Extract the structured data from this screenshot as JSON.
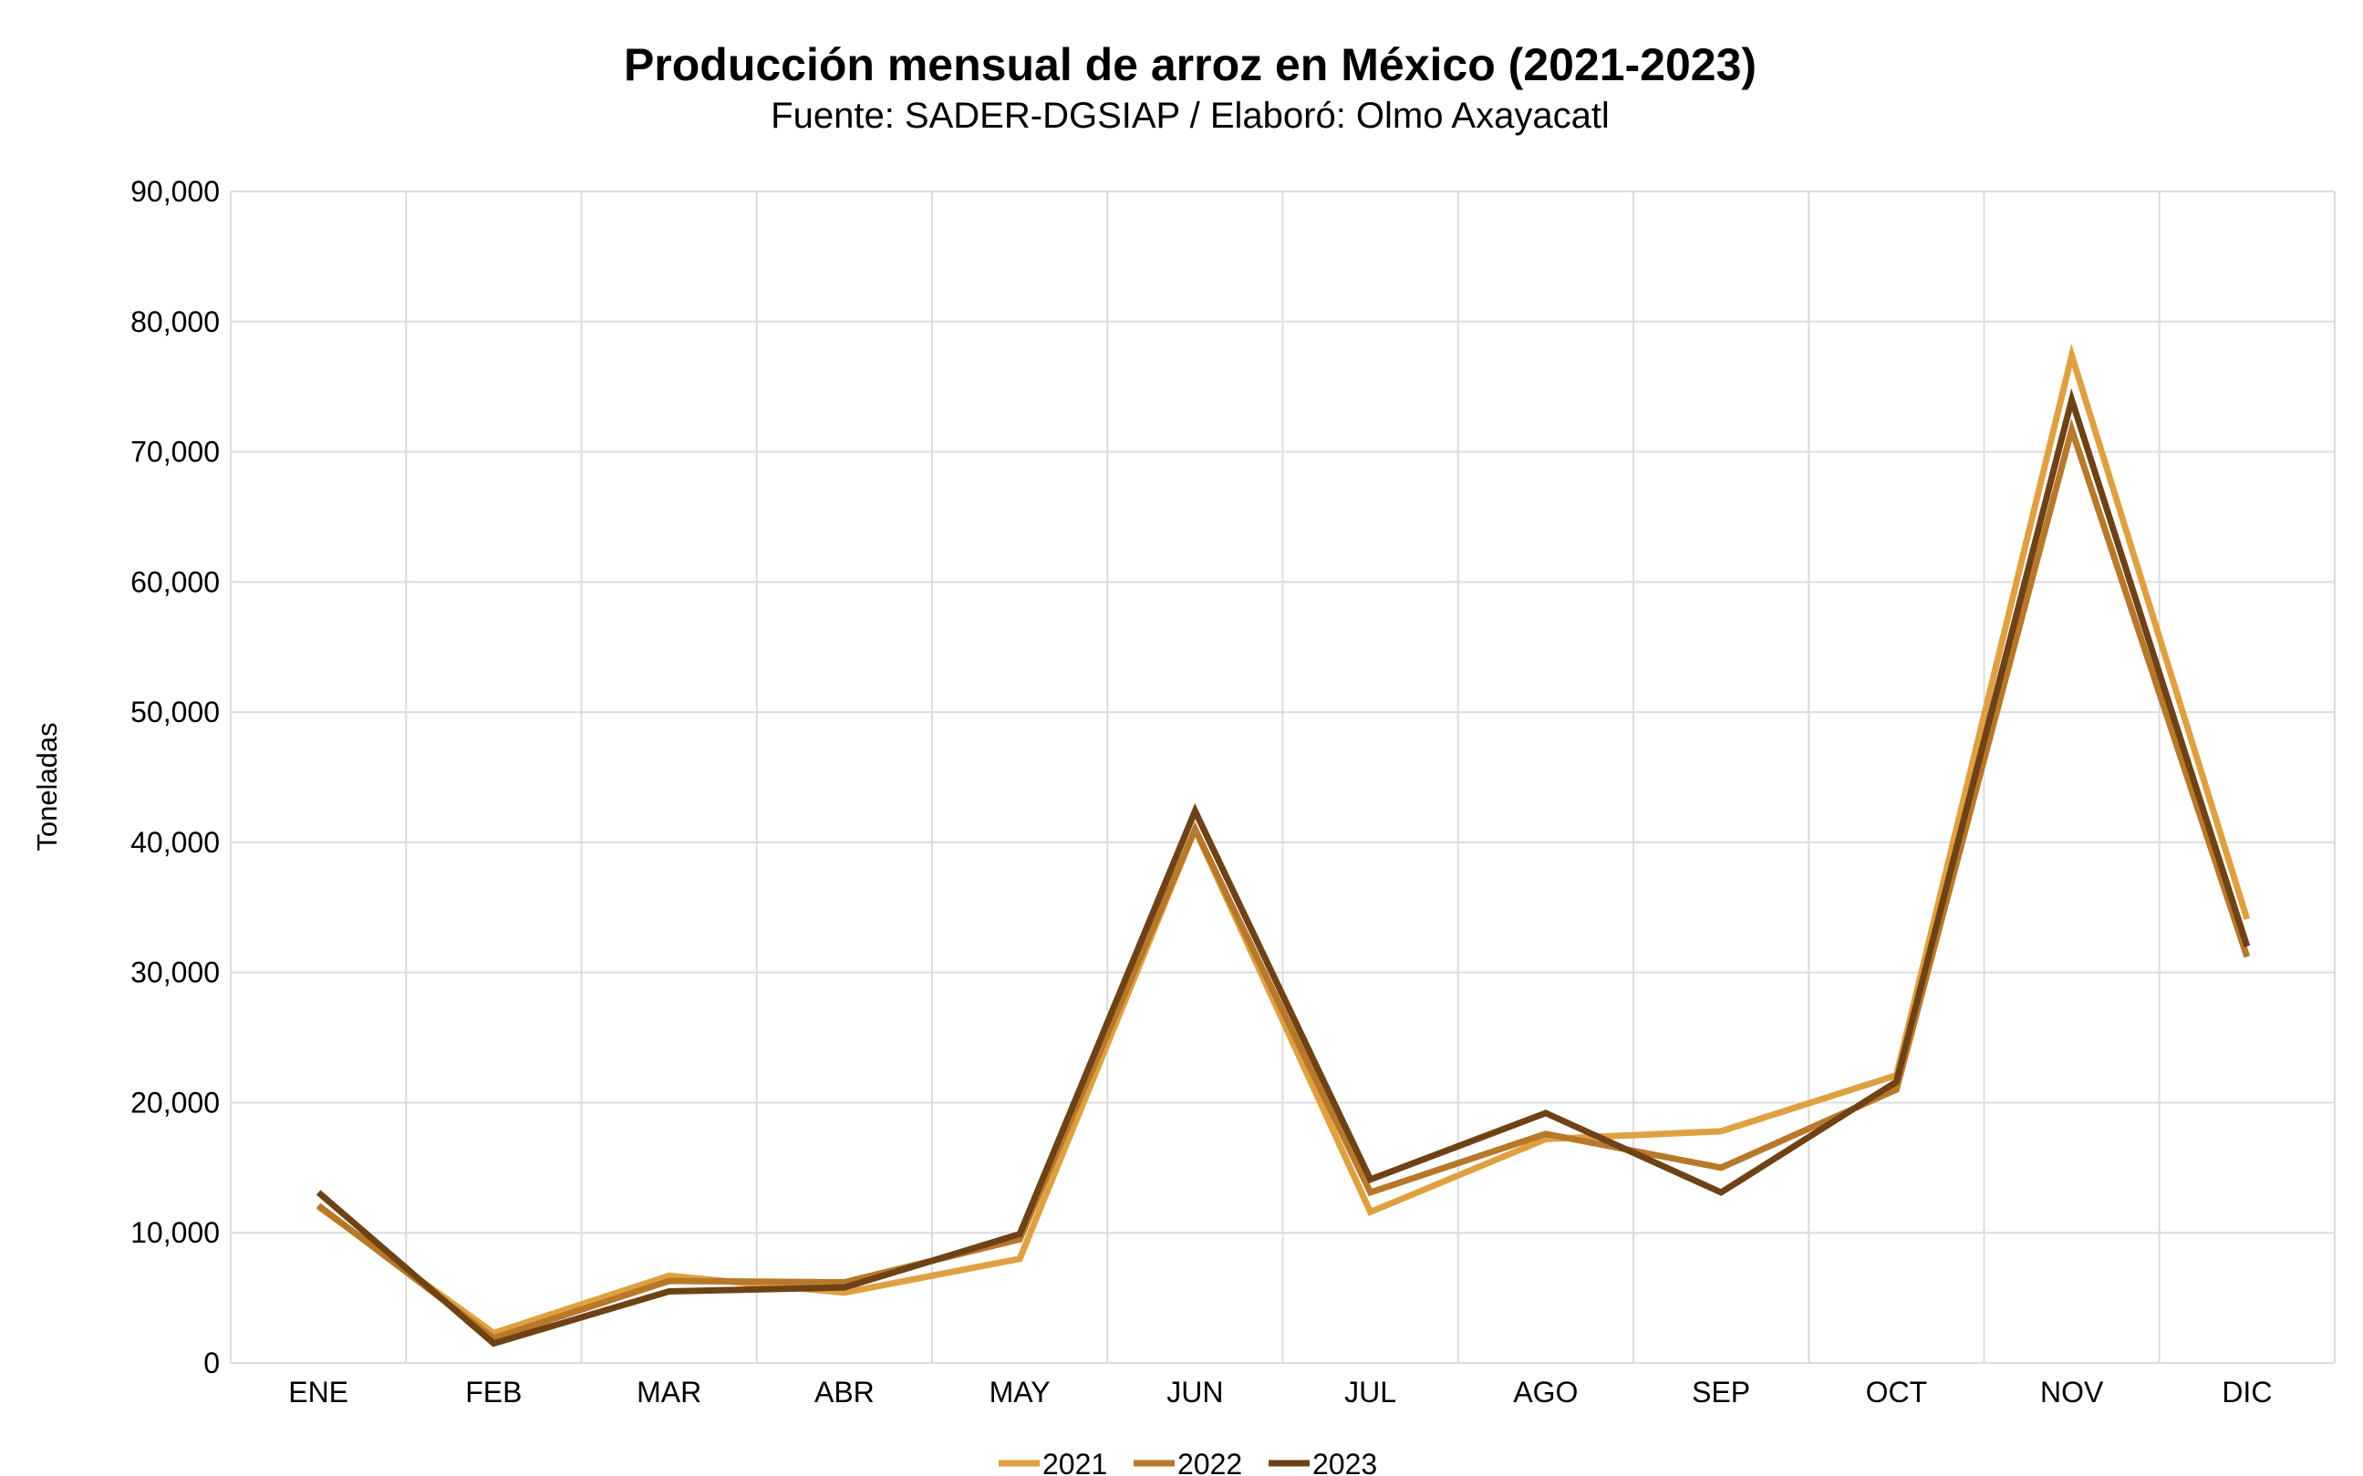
{
  "chart_data": {
    "type": "line",
    "title": "Producción mensual de arroz en México (2021-2023)",
    "subtitle": "Fuente: SADER-DGSIAP / Elaboró: Olmo Axayacatl",
    "xlabel": "",
    "ylabel": "Toneladas",
    "ylim": [
      0,
      90000
    ],
    "yticks": [
      0,
      10000,
      20000,
      30000,
      40000,
      50000,
      60000,
      70000,
      80000,
      90000
    ],
    "ytick_labels": [
      "0",
      "10,000",
      "20,000",
      "30,000",
      "40,000",
      "50,000",
      "60,000",
      "70,000",
      "80,000",
      "90,000"
    ],
    "categories": [
      "ENE",
      "FEB",
      "MAR",
      "ABR",
      "MAY",
      "JUN",
      "JUL",
      "AGO",
      "SEP",
      "OCT",
      "NOV",
      "DIC"
    ],
    "grid": true,
    "legend_position": "bottom",
    "series": [
      {
        "name": "2021",
        "color": "#E0A040",
        "values": [
          12000,
          2300,
          6700,
          5400,
          8000,
          41000,
          11600,
          17200,
          17800,
          22100,
          77400,
          34100
        ]
      },
      {
        "name": "2022",
        "color": "#B8782A",
        "values": [
          12100,
          1900,
          6300,
          6200,
          9500,
          41000,
          13100,
          17600,
          15000,
          21000,
          71700,
          31200
        ]
      },
      {
        "name": "2023",
        "color": "#6E4215",
        "values": [
          13100,
          1500,
          5500,
          5800,
          9900,
          42400,
          14100,
          19200,
          13100,
          21600,
          74000,
          32000
        ]
      }
    ]
  }
}
